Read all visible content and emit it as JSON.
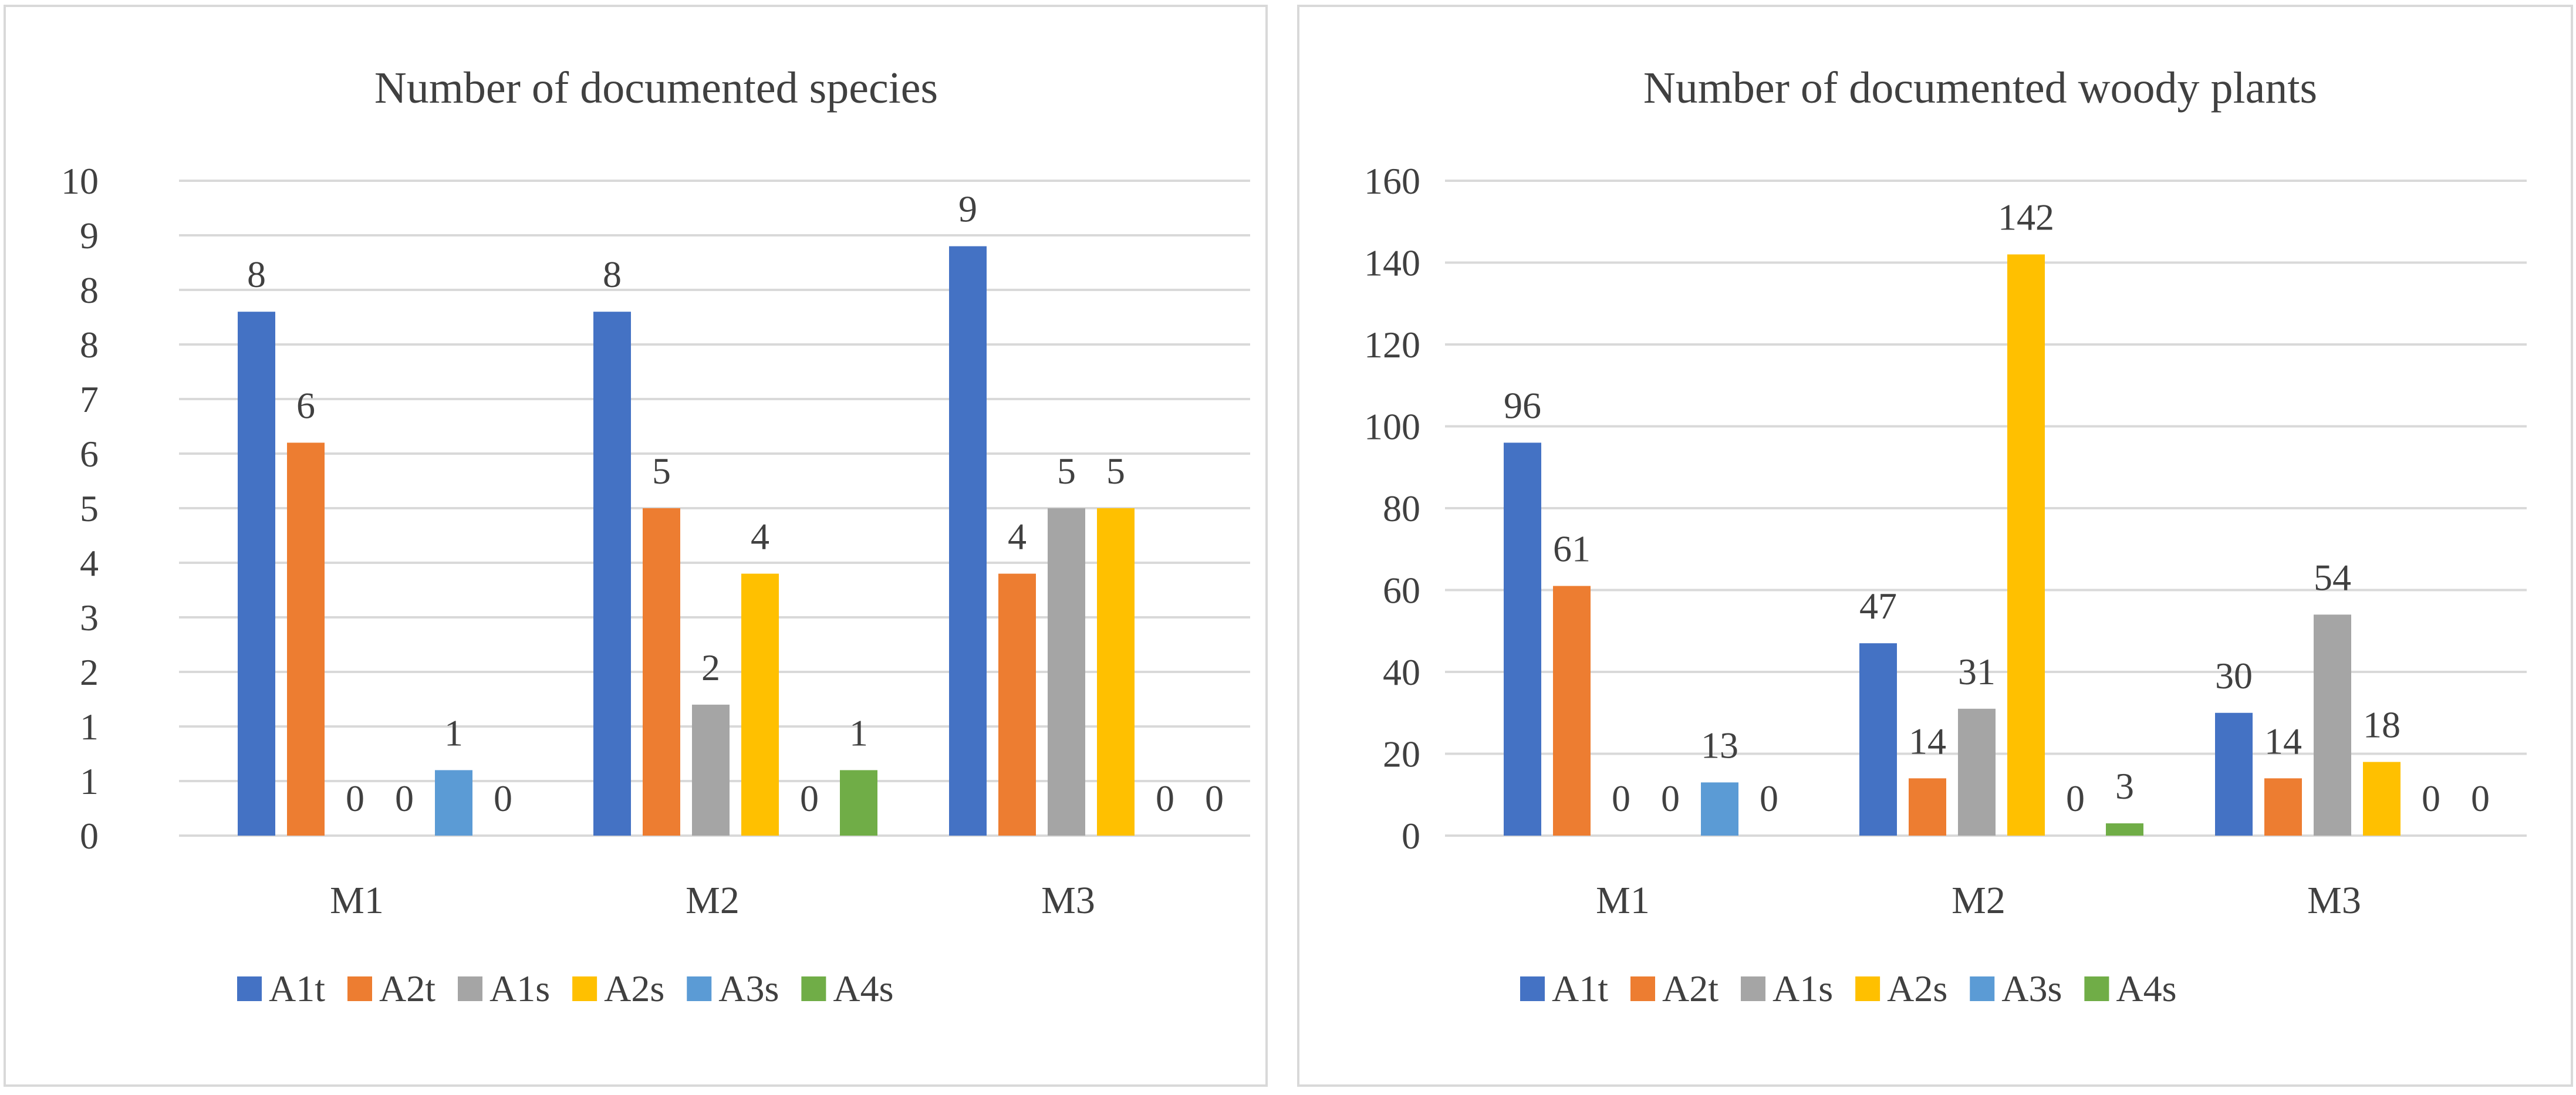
{
  "chart_data": [
    {
      "type": "bar",
      "title": "Number of documented species",
      "categories": [
        "M1",
        "M2",
        "M3"
      ],
      "series": [
        {
          "name": "A1t",
          "color": "#4472C4",
          "values": [
            8,
            8,
            9
          ]
        },
        {
          "name": "A2t",
          "color": "#ED7D31",
          "values": [
            6,
            5,
            4
          ]
        },
        {
          "name": "A1s",
          "color": "#A5A5A5",
          "values": [
            0,
            2,
            5
          ]
        },
        {
          "name": "A2s",
          "color": "#FFC000",
          "values": [
            0,
            4,
            5
          ]
        },
        {
          "name": "A3s",
          "color": "#5B9BD5",
          "values": [
            1,
            0,
            0
          ]
        },
        {
          "name": "A4s",
          "color": "#70AD47",
          "values": [
            0,
            1,
            0
          ]
        }
      ],
      "data_labels": [
        [
          "8",
          "6",
          "0",
          "0",
          "1",
          "0"
        ],
        [
          "8",
          "5",
          "2",
          "4",
          "0",
          "1"
        ],
        [
          "9",
          "4",
          "5",
          "5",
          "0",
          "0"
        ]
      ],
      "y_tick_labels": [
        "0",
        "1",
        "1",
        "2",
        "3",
        "4",
        "5",
        "6",
        "7",
        "8",
        "8",
        "9",
        "10"
      ],
      "ylim": [
        0,
        10
      ],
      "grid": true,
      "legend": "bottom"
    },
    {
      "type": "bar",
      "title": "Number of documented woody plants",
      "categories": [
        "M1",
        "M2",
        "M3"
      ],
      "series": [
        {
          "name": "A1t",
          "color": "#4472C4",
          "values": [
            96,
            47,
            30
          ]
        },
        {
          "name": "A2t",
          "color": "#ED7D31",
          "values": [
            61,
            14,
            14
          ]
        },
        {
          "name": "A1s",
          "color": "#A5A5A5",
          "values": [
            0,
            31,
            54
          ]
        },
        {
          "name": "A2s",
          "color": "#FFC000",
          "values": [
            0,
            142,
            18
          ]
        },
        {
          "name": "A3s",
          "color": "#5B9BD5",
          "values": [
            13,
            0,
            0
          ]
        },
        {
          "name": "A4s",
          "color": "#70AD47",
          "values": [
            0,
            3,
            0
          ]
        }
      ],
      "data_labels": [
        [
          "96",
          "61",
          "0",
          "0",
          "13",
          "0"
        ],
        [
          "47",
          "14",
          "31",
          "142",
          "0",
          "3"
        ],
        [
          "30",
          "14",
          "54",
          "18",
          "0",
          "0"
        ]
      ],
      "y_tick_labels": [
        "0",
        "20",
        "40",
        "60",
        "80",
        "100",
        "120",
        "140",
        "160"
      ],
      "ylim": [
        0,
        160
      ],
      "grid": true,
      "legend": "bottom"
    }
  ]
}
